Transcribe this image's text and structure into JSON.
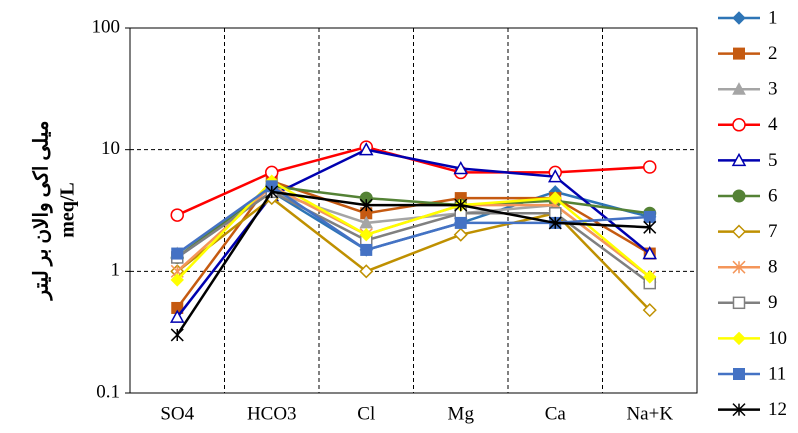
{
  "chart_data": {
    "type": "line",
    "log_scale": true,
    "grid": true,
    "y_label": [
      "میلی اکی والان بر لیتر",
      "meq/L"
    ],
    "categories": [
      "SO4",
      "HCO3",
      "Cl",
      "Mg",
      "Ca",
      "Na+K"
    ],
    "ylim": [
      0.1,
      100
    ],
    "yticks": [
      0.1,
      1,
      10,
      100
    ],
    "series": [
      {
        "name": "1",
        "color": "#2e75b6",
        "marker": "diamond",
        "values": [
          1.3,
          4.5,
          1.5,
          2.5,
          4.5,
          2.8
        ]
      },
      {
        "name": "2",
        "color": "#c55a11",
        "marker": "square",
        "values": [
          0.5,
          5.5,
          3.0,
          4.0,
          4.0,
          1.4
        ]
      },
      {
        "name": "3",
        "color": "#a5a5a5",
        "marker": "triangle",
        "values": [
          1.4,
          4.5,
          2.5,
          3.0,
          3.5,
          0.9
        ]
      },
      {
        "name": "4",
        "color": "#ff0000",
        "marker": "circle-open",
        "values": [
          2.9,
          6.5,
          10.5,
          6.5,
          6.5,
          7.2
        ]
      },
      {
        "name": "5",
        "color": "#0000b0",
        "marker": "triangle-open",
        "values": [
          0.42,
          4.2,
          10,
          7,
          6,
          1.4
        ]
      },
      {
        "name": "6",
        "color": "#548235",
        "marker": "circle",
        "values": [
          1.3,
          5.0,
          4.0,
          3.5,
          3.8,
          3.0
        ]
      },
      {
        "name": "7",
        "color": "#bf9000",
        "marker": "diamond-open",
        "values": [
          1.0,
          4.0,
          1.0,
          2.0,
          3.0,
          0.48
        ]
      },
      {
        "name": "8",
        "color": "#f4965a",
        "marker": "star",
        "values": [
          1.0,
          5.0,
          2.0,
          3.5,
          3.5,
          0.9
        ]
      },
      {
        "name": "9",
        "color": "#808080",
        "marker": "square-open",
        "values": [
          1.3,
          4.5,
          1.8,
          3.0,
          3.0,
          0.8
        ]
      },
      {
        "name": "10",
        "color": "#ffff00",
        "marker": "diamond",
        "values": [
          0.85,
          5.5,
          2.0,
          3.5,
          4.0,
          0.9
        ]
      },
      {
        "name": "11",
        "color": "#4472c4",
        "marker": "square",
        "values": [
          1.4,
          5.0,
          1.5,
          2.5,
          2.5,
          2.8
        ]
      },
      {
        "name": "12",
        "color": "#000000",
        "marker": "star",
        "values": [
          0.3,
          4.5,
          3.5,
          3.5,
          2.5,
          2.3
        ]
      }
    ]
  }
}
